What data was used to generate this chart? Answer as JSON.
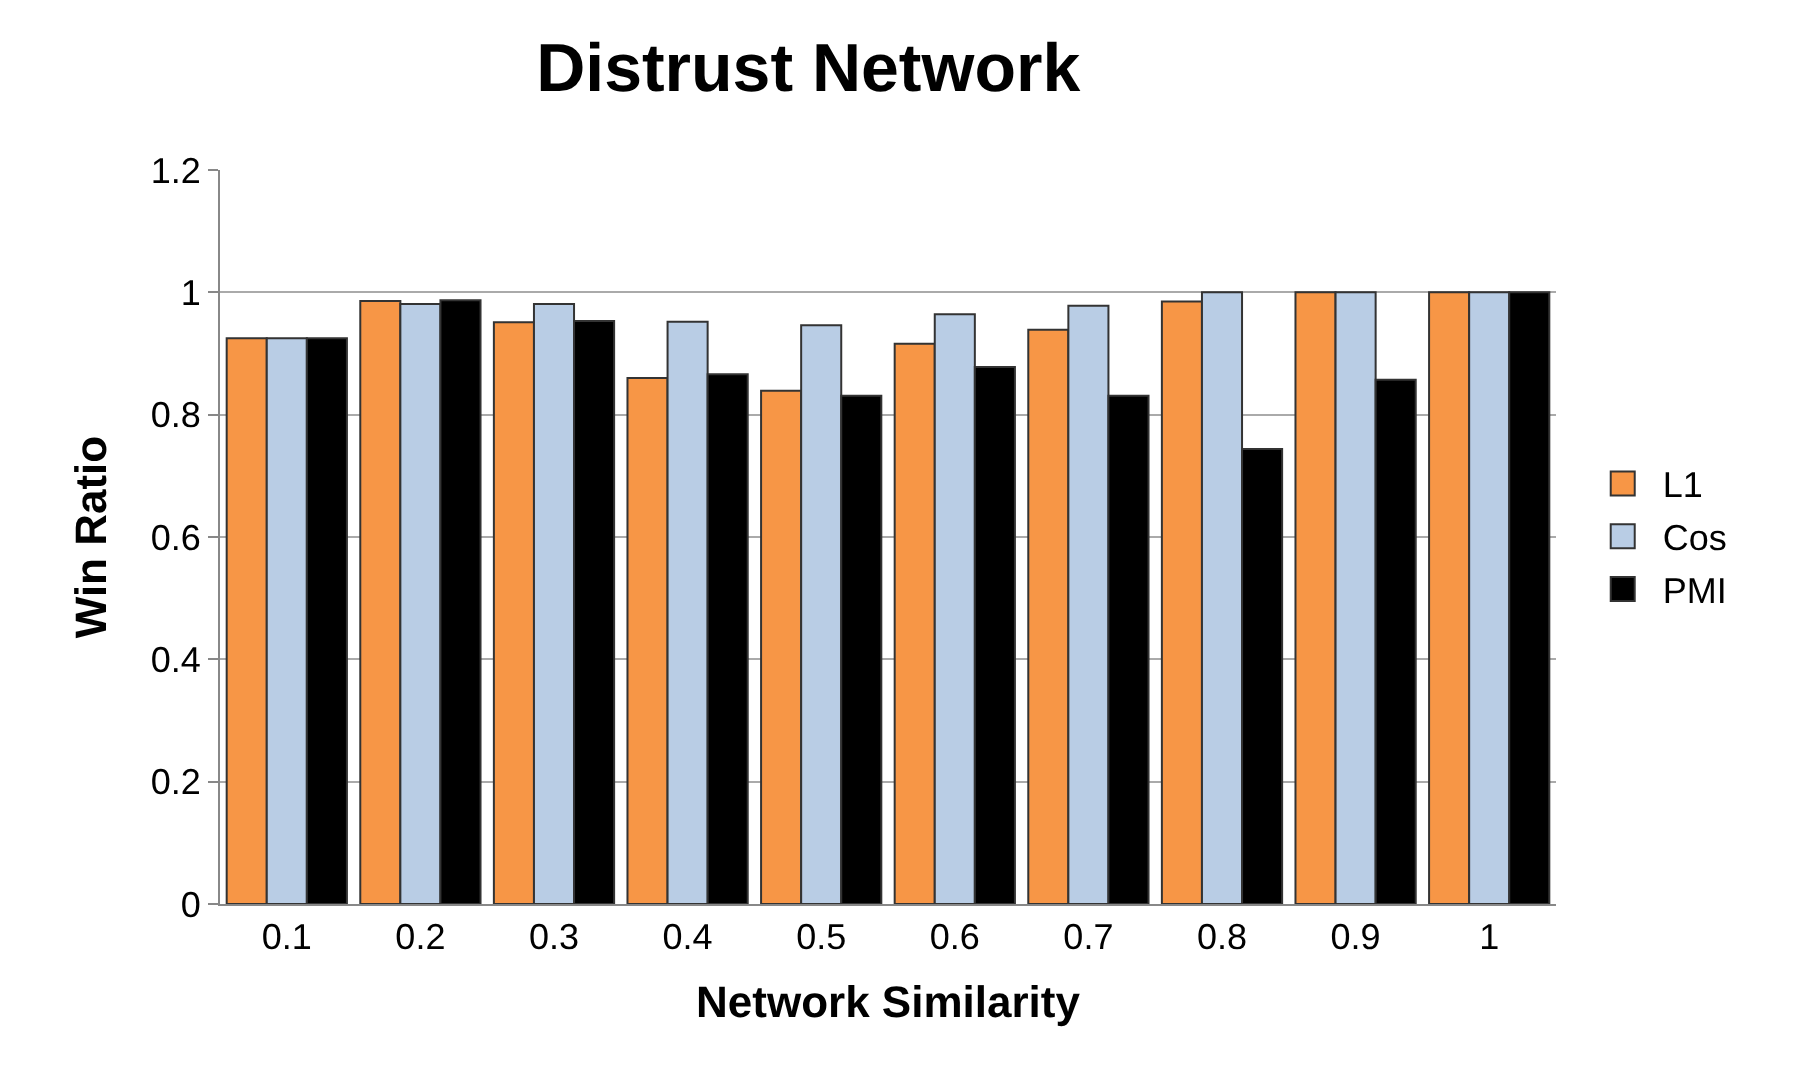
{
  "chart_data": {
    "type": "bar",
    "title": "Distrust Network",
    "xlabel": "Network Similarity",
    "ylabel": "Win Ratio",
    "categories": [
      "0.1",
      "0.2",
      "0.3",
      "0.4",
      "0.5",
      "0.6",
      "0.7",
      "0.8",
      "0.9",
      "1"
    ],
    "series": [
      {
        "name": "L1",
        "color": "#f79646",
        "values": [
          0.925,
          0.986,
          0.951,
          0.86,
          0.839,
          0.916,
          0.939,
          0.985,
          1.0,
          1.0
        ]
      },
      {
        "name": "Cos",
        "color": "#b9cde5",
        "values": [
          0.925,
          0.981,
          0.981,
          0.952,
          0.946,
          0.964,
          0.978,
          1.0,
          1.0,
          1.0
        ]
      },
      {
        "name": "PMI",
        "color": "#000000",
        "values": [
          0.925,
          0.987,
          0.953,
          0.866,
          0.831,
          0.878,
          0.831,
          0.744,
          0.857,
          1.0
        ]
      }
    ],
    "ylim": [
      0,
      1.2
    ],
    "yticks": [
      0,
      0.2,
      0.4,
      0.6,
      0.8,
      1,
      1.2
    ],
    "grid": "y",
    "legend": "right"
  }
}
